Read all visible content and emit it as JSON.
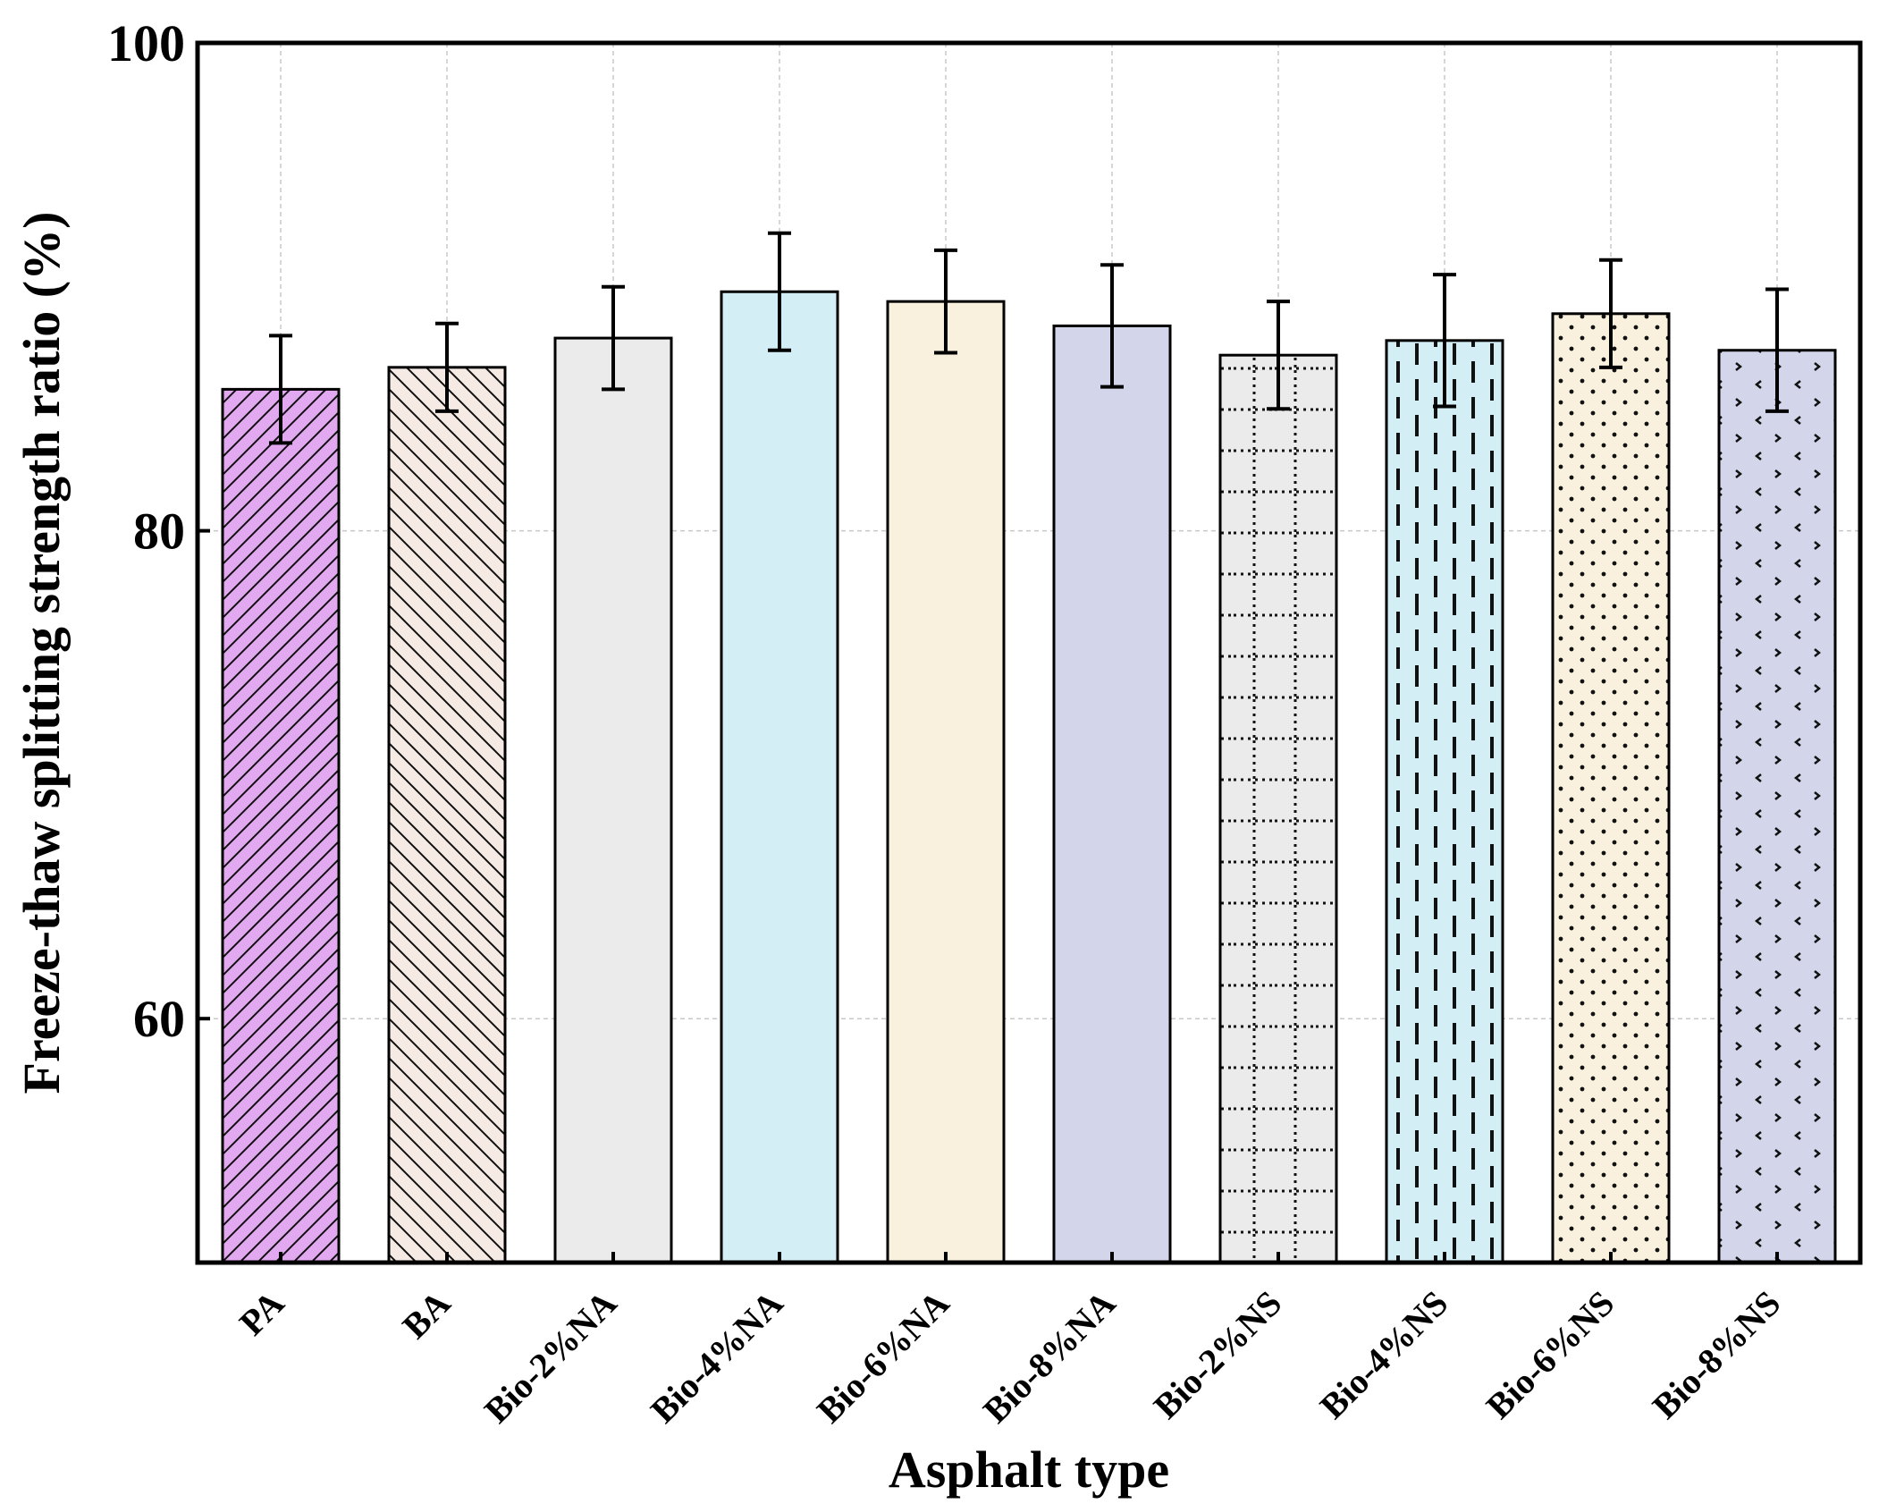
{
  "chart_data": {
    "type": "bar",
    "title": "",
    "xlabel": "Asphalt type",
    "ylabel": "Freeze-thaw splitting strength ratio (%)",
    "ylim": [
      50,
      100
    ],
    "yticks": [
      60,
      80,
      100
    ],
    "grid": true,
    "categories": [
      "PA",
      "BA",
      "Bio-2%NA",
      "Bio-4%NA",
      "Bio-6%NA",
      "Bio-8%NA",
      "Bio-2%NS",
      "Bio-4%NS",
      "Bio-6%NS",
      "Bio-8%NS"
    ],
    "values": [
      85.8,
      86.7,
      87.9,
      89.8,
      89.4,
      88.4,
      87.2,
      87.8,
      88.9,
      87.4
    ],
    "errors": [
      2.2,
      1.8,
      2.1,
      2.4,
      2.1,
      2.5,
      2.2,
      2.7,
      2.2,
      2.5
    ],
    "bar_colors": [
      "#E2A8F0",
      "#F5EAE4",
      "#EBEBEB",
      "#D3EEF5",
      "#FAF0DE",
      "#D3D6EA",
      "#EBEBEB",
      "#D3EEF5",
      "#FAF0DE",
      "#D3D6EA"
    ],
    "bar_patterns": [
      "diag-right",
      "diag-left",
      "none",
      "none",
      "none",
      "none",
      "grid-dotted",
      "dashed-vertical",
      "dots",
      "chevrons"
    ]
  }
}
